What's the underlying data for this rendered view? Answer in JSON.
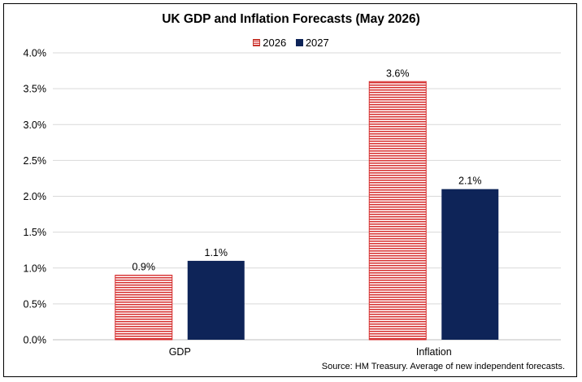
{
  "chart_data": {
    "type": "bar",
    "title": "UK GDP and Inflation Forecasts (May 2026)",
    "categories": [
      "GDP",
      "Inflation"
    ],
    "series": [
      {
        "name": "2026",
        "values": [
          0.9,
          3.6
        ],
        "labels": [
          "0.9%",
          "3.6%"
        ],
        "color": "#d62f2f",
        "pattern": "horizontal-stripes"
      },
      {
        "name": "2027",
        "values": [
          1.1,
          2.1
        ],
        "labels": [
          "1.1%",
          "2.1%"
        ],
        "color": "#0e2458",
        "pattern": "solid"
      }
    ],
    "ylim": [
      0,
      4.0
    ],
    "yticks": [
      "0.0%",
      "0.5%",
      "1.0%",
      "1.5%",
      "2.0%",
      "2.5%",
      "3.0%",
      "3.5%",
      "4.0%"
    ],
    "grid": true,
    "legend_position": "top-center",
    "source_note": "Source: HM Treasury. Average of new independent forecasts."
  }
}
